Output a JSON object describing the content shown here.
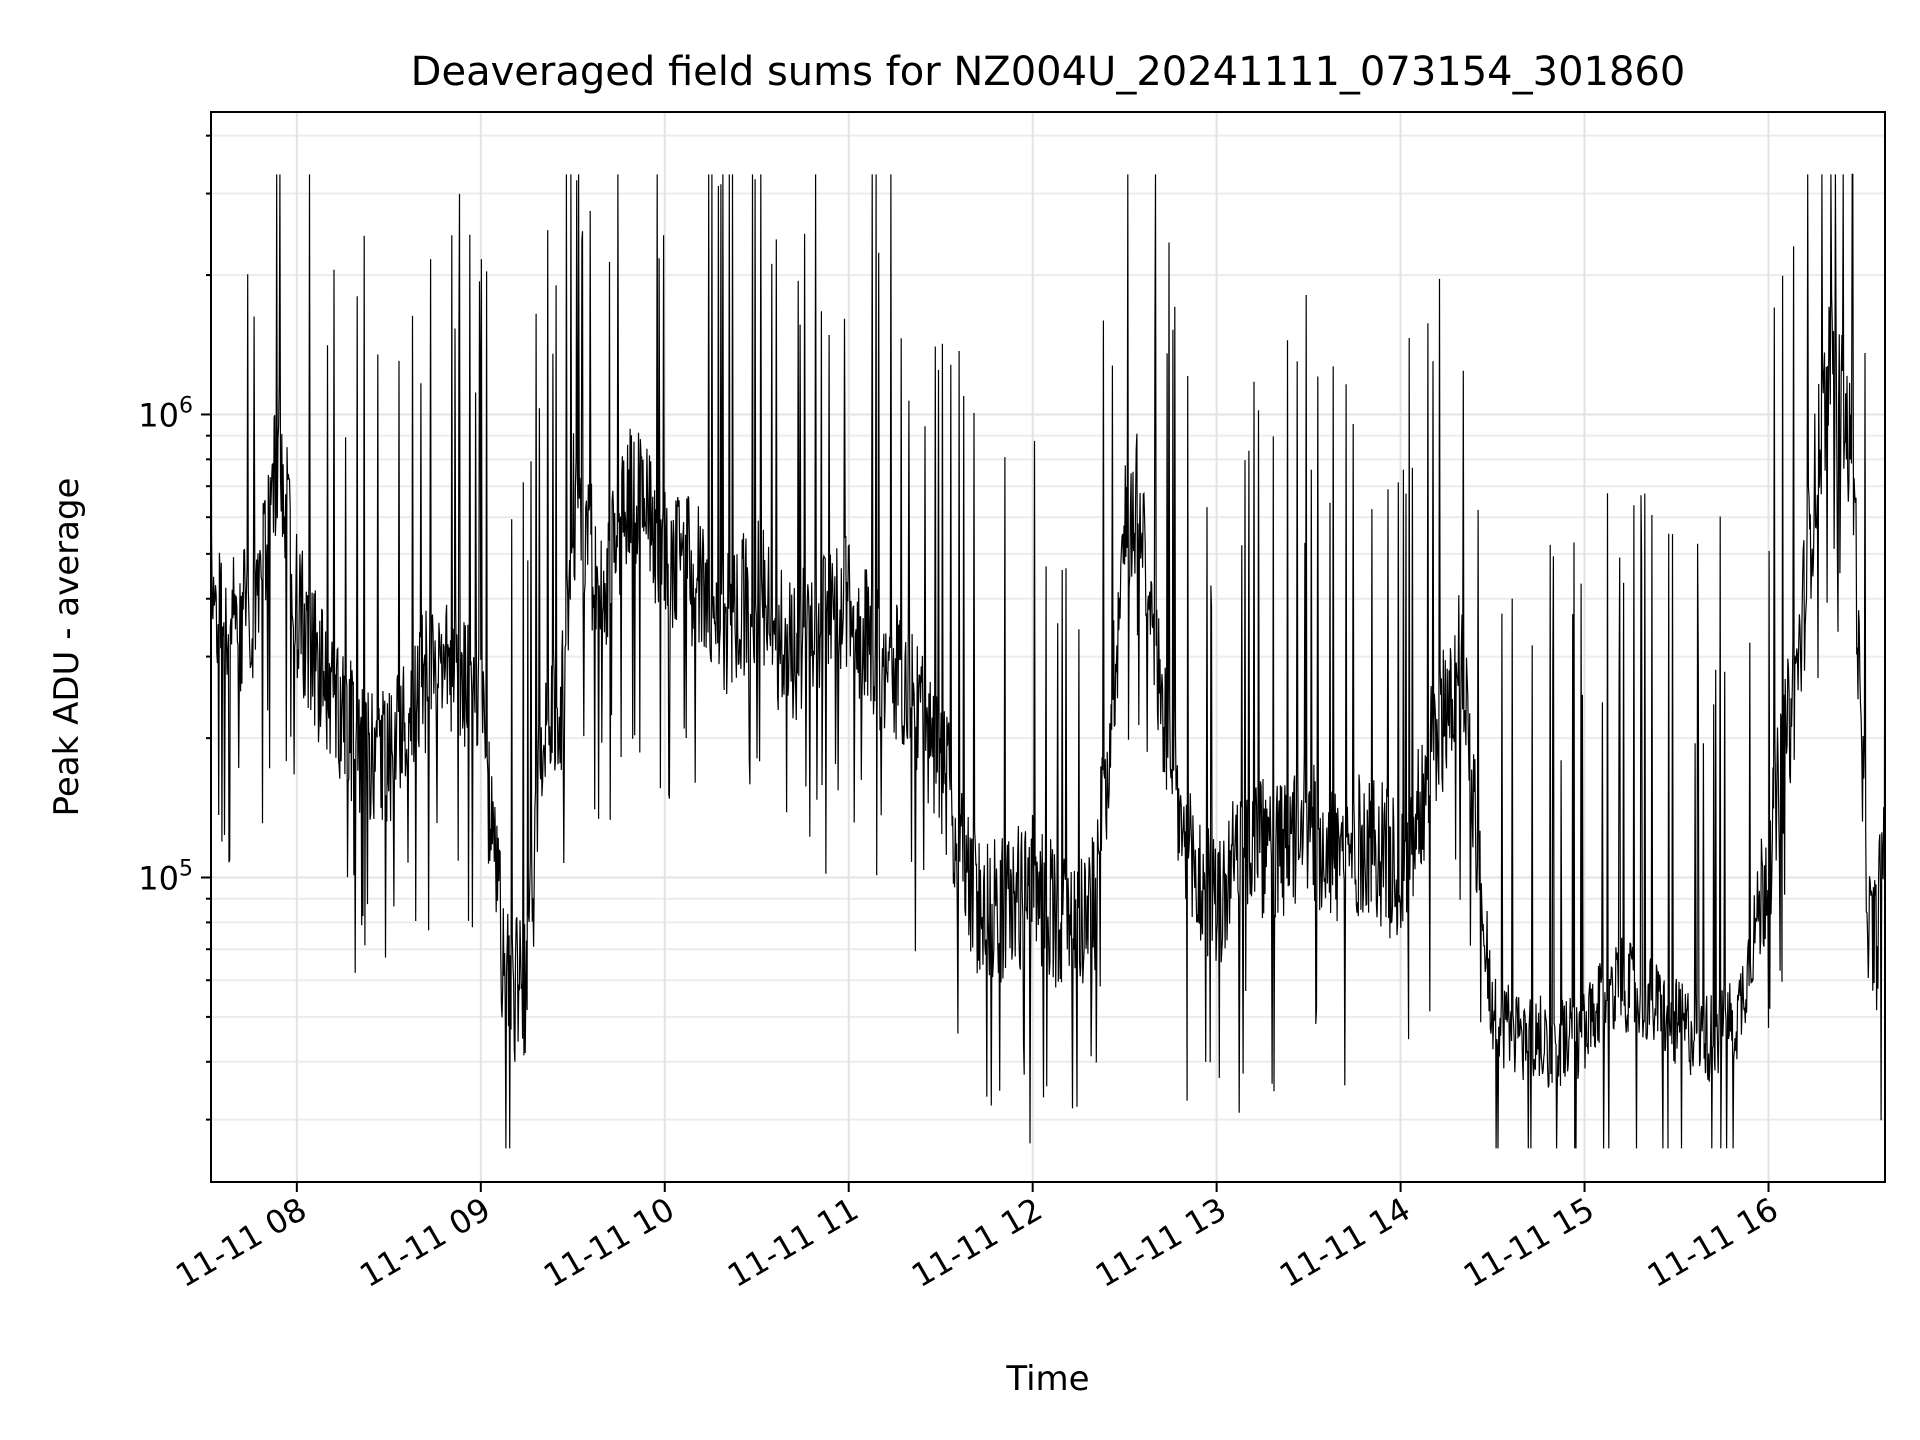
{
  "chart_data": {
    "type": "line",
    "title": "Deaveraged field sums for NZ004U_20241111_073154_301860",
    "xlabel": "Time",
    "ylabel": "Peak ADU - average",
    "yscale": "log",
    "xlim": [
      "2024-11-11 07:32",
      "2024-11-11 16:38"
    ],
    "ylim": [
      22000,
      4500000
    ],
    "grid": true,
    "x_ticks": [
      "11-11 08",
      "11-11 09",
      "11-11 10",
      "11-11 11",
      "11-11 12",
      "11-11 13",
      "11-11 14",
      "11-11 15",
      "11-11 16"
    ],
    "y_ticks": [
      {
        "base": "10",
        "exp": "5",
        "value": 100000
      },
      {
        "base": "10",
        "exp": "6",
        "value": 1000000
      }
    ],
    "color": "#000000",
    "series": [
      {
        "x": [
          "07:32",
          "07:40",
          "07:48",
          "07:54",
          "08:00",
          "08:10",
          "08:20",
          "08:30",
          "08:40",
          "08:50",
          "09:00",
          "09:08",
          "09:15",
          "09:20",
          "09:27",
          "09:30",
          "09:40",
          "09:50",
          "10:00",
          "10:10",
          "10:20",
          "10:30",
          "10:40",
          "10:50",
          "11:00",
          "11:10",
          "11:20",
          "11:30",
          "11:40",
          "11:50",
          "12:00",
          "12:10",
          "12:20",
          "12:25",
          "12:30",
          "12:35",
          "12:40",
          "12:50",
          "13:00",
          "13:10",
          "13:20",
          "13:30",
          "13:40",
          "13:50",
          "14:00",
          "14:10",
          "14:20",
          "14:30",
          "14:40",
          "14:50",
          "15:00",
          "15:10",
          "15:20",
          "15:30",
          "15:40",
          "15:50",
          "16:00",
          "16:10",
          "16:15",
          "16:20",
          "16:25",
          "16:28",
          "16:30",
          "16:33",
          "16:35",
          "16:38"
        ],
        "y": [
          420000,
          350000,
          400000,
          900000,
          380000,
          250000,
          200000,
          180000,
          260000,
          290000,
          230000,
          60000,
          55000,
          220000,
          250000,
          650000,
          420000,
          700000,
          500000,
          450000,
          350000,
          420000,
          300000,
          350000,
          380000,
          300000,
          250000,
          180000,
          90000,
          85000,
          95000,
          80000,
          85000,
          200000,
          550000,
          700000,
          300000,
          110000,
          85000,
          120000,
          110000,
          130000,
          110000,
          120000,
          100000,
          180000,
          300000,
          50000,
          45000,
          44000,
          45000,
          60000,
          55000,
          48000,
          45000,
          50000,
          110000,
          300000,
          700000,
          1300000,
          1000000,
          700000,
          200000,
          75000,
          70000,
          140000
        ]
      }
    ]
  }
}
